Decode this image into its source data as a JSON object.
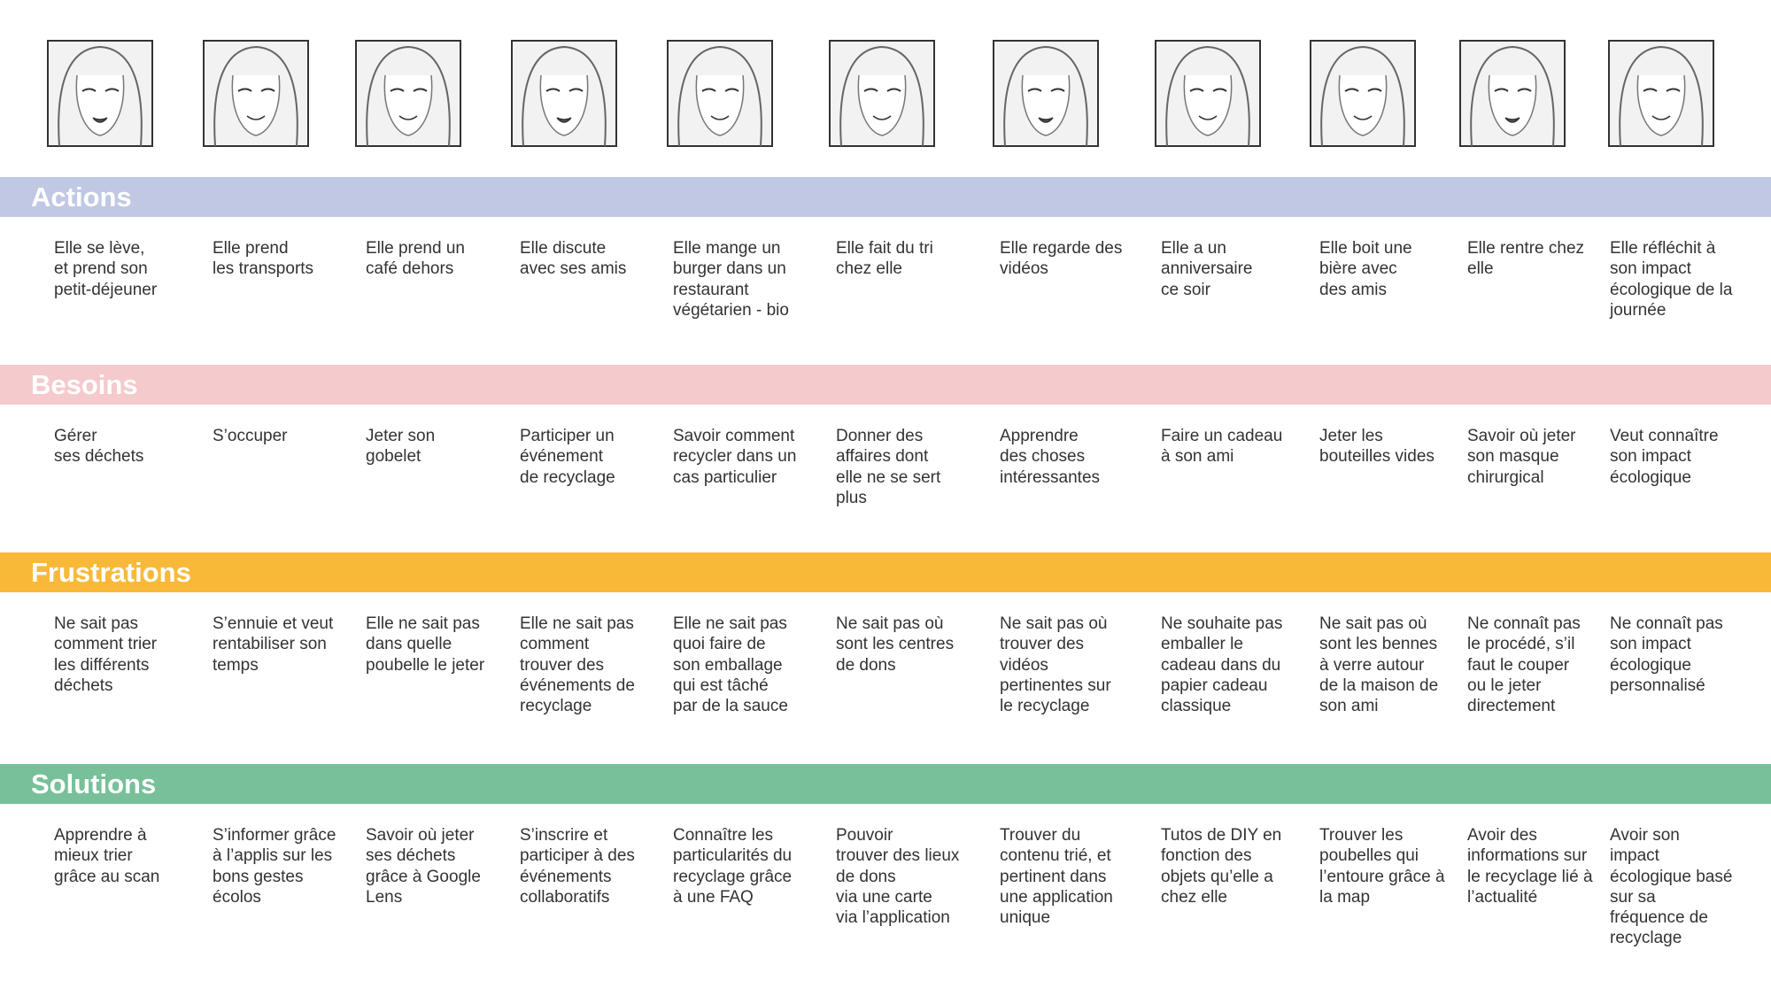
{
  "sections": [
    {
      "title": "Actions",
      "color": "#c0c8e4",
      "items": [
        "Elle se lève,\net prend son\npetit-déjeuner",
        "Elle prend\nles transports",
        "Elle prend un\ncafé dehors",
        "Elle discute\navec ses amis",
        "Elle mange un\nburger dans un\nrestaurant\nvégétarien - bio",
        "Elle fait du tri\nchez elle",
        "Elle regarde des\nvidéos",
        "Elle a un\nanniversaire\nce soir",
        "Elle boit une\nbière avec\ndes amis",
        "Elle rentre chez\nelle",
        "Elle réfléchit à\nson impact\nécologique de la\njournée"
      ]
    },
    {
      "title": "Besoins",
      "color": "#f4cacd",
      "items": [
        "Gérer\nses déchets",
        "S’occuper",
        "Jeter son\ngobelet",
        "Participer un\névénement\nde recyclage",
        "Savoir comment\nrecycler dans un\ncas particulier",
        "Donner des\naffaires dont\nelle ne se sert\nplus",
        "Apprendre\ndes choses\nintéressantes",
        "Faire un cadeau\nà son ami",
        "Jeter les\nbouteilles vides",
        "Savoir où jeter\nson masque\nchirurgical",
        "Veut connaître\nson impact\nécologique"
      ]
    },
    {
      "title": "Frustrations",
      "color": "#f9b938",
      "items": [
        "Ne sait pas\ncomment trier\nles différents\ndéchets",
        "S’ennuie et veut\nrentabiliser son\ntemps",
        "Elle ne sait pas\ndans quelle\npoubelle le jeter",
        "Elle ne sait pas\ncomment\ntrouver des\névénements de\nrecyclage",
        "Elle ne sait pas\nquoi faire de\nson emballage\nqui est tâché\npar de la sauce",
        "Ne sait pas où\nsont les centres\nde dons",
        "Ne sait pas où\ntrouver des\nvidéos\npertinentes sur\nle recyclage",
        "Ne souhaite pas\nemballer le\ncadeau dans du\npapier cadeau\nclassique",
        "Ne sait pas où\nsont les bennes\nà verre autour\nde la maison de\nson ami",
        "Ne connaît pas\nle procédé, s’il\nfaut le couper\nou le jeter\ndirectement",
        "Ne connaît pas\nson impact\nécologique\npersonnalisé"
      ]
    },
    {
      "title": "Solutions",
      "color": "#77c09a",
      "items": [
        "Apprendre à\nmieux trier\ngrâce au scan",
        "S’informer grâce\nà l’applis sur les\nbons gestes\nécolos",
        "Savoir où jeter\nses déchets\ngrâce à Google\nLens",
        "S’inscrire et\nparticiper à des\névénements\ncollaboratifs",
        "Connaître les\nparticularités du\nrecyclage grâce\nà une FAQ",
        "Pouvoir\ntrouver des lieux\nde dons\nvia une carte\nvia l’application",
        "Trouver du\ncontenu trié, et\npertinent dans\nune application\nunique",
        "Tutos de DIY en\nfonction des\nobjets qu’elle a\nchez elle",
        "Trouver les\npoubelles qui\nl’entoure grâce à\nla map",
        "Avoir des\ninformations sur\nle recyclage lié à\nl’actualité",
        "Avoir son\nimpact\nécologique basé\nsur sa\nfréquence de\nrecyclage"
      ]
    }
  ]
}
